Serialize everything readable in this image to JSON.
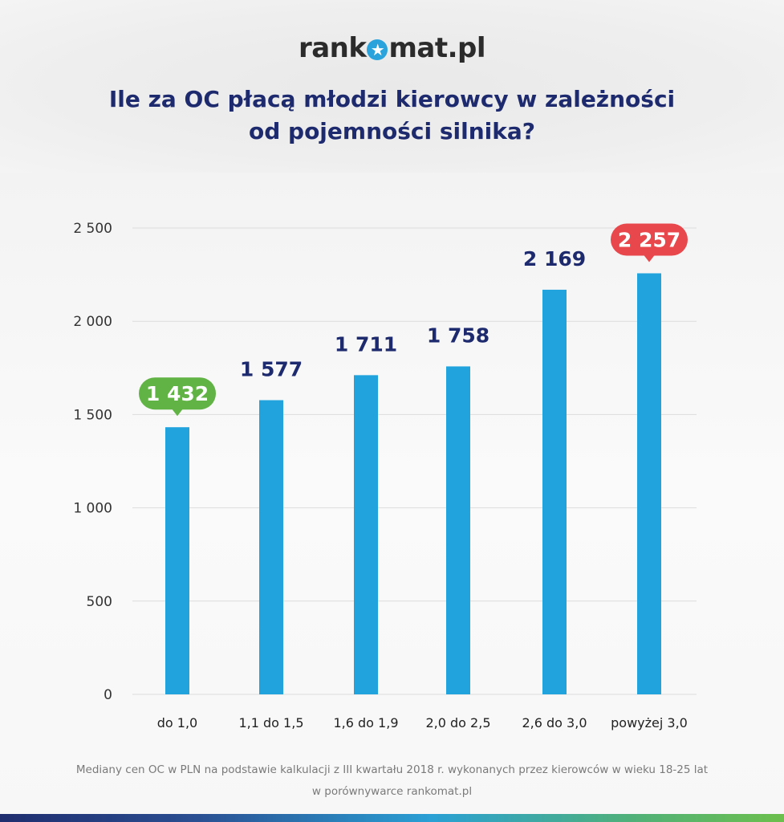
{
  "logo": {
    "before": "rank",
    "star": "★",
    "after": "mat.pl",
    "full": "rankomat.pl"
  },
  "title_line1": "Ile za OC płacą młodzi kierowcy w zależności",
  "title_line2": "od pojemności silnika?",
  "chart_data": {
    "type": "bar",
    "title": "Ile za OC płacą młodzi kierowcy w zależności od pojemności silnika?",
    "categories": [
      "do 1,0",
      "1,1 do 1,5",
      "1,6 do 1,9",
      "2,0 do 2,5",
      "2,6 do 3,0",
      "powyżej 3,0"
    ],
    "values": [
      1432,
      1577,
      1711,
      1758,
      2169,
      2257
    ],
    "value_labels": [
      "1 432",
      "1 577",
      "1 711",
      "1 758",
      "2 169",
      "2 257"
    ],
    "highlight": [
      "min",
      "none",
      "none",
      "none",
      "none",
      "max"
    ],
    "yticks": [
      0,
      500,
      1000,
      1500,
      2000,
      2500
    ],
    "ytick_labels": [
      "0",
      "500",
      "1 000",
      "1 500",
      "2 000",
      "2 500"
    ],
    "ylim": [
      0,
      2500
    ],
    "xlabel": "",
    "ylabel": "",
    "grid": true,
    "colors": {
      "bar": "#21a3de",
      "label": "#1e2a6e",
      "min": "#62b346",
      "max": "#e8474c",
      "grid": "#dcdcdc",
      "tick": "#333333"
    }
  },
  "footer": {
    "line1": "Mediany cen OC w PLN na podstawie kalkulacji z III kwartału 2018 r. wykonanych przez kierowców w wieku 18-25 lat",
    "line2": "w porównywarce rankomat.pl"
  }
}
